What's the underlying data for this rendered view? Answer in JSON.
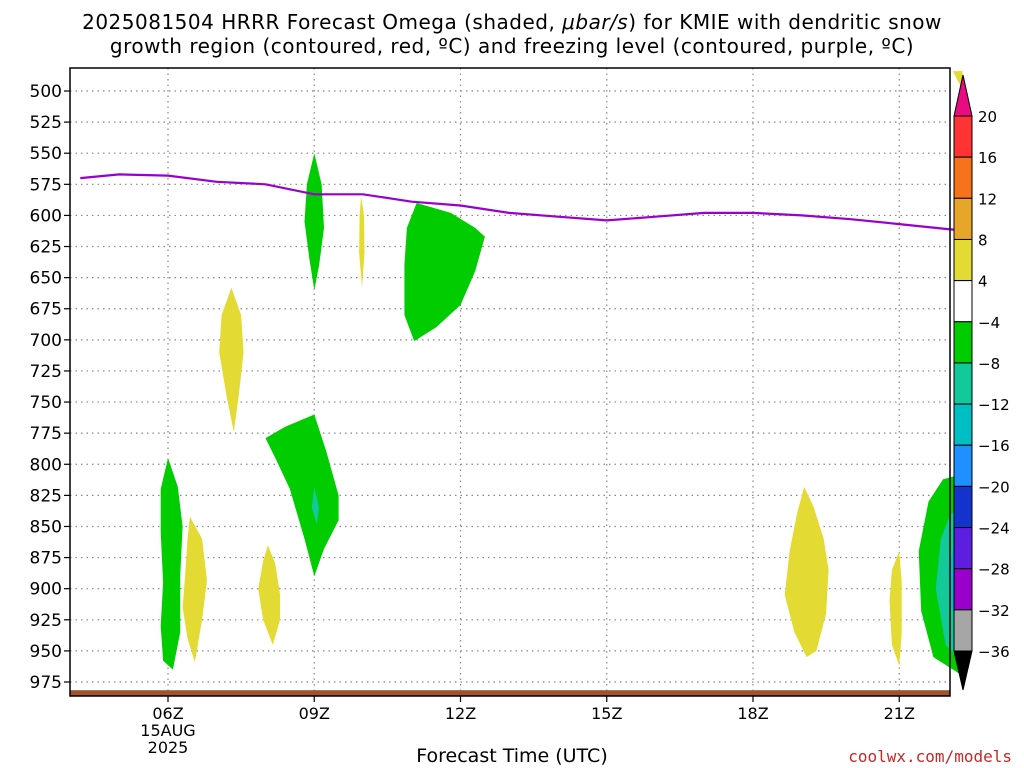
{
  "title": {
    "line1_prefix": "2025081504 HRRR Forecast Omega (shaded, ",
    "line1_unit": "μbar/s",
    "line1_suffix": ") for KMIE with dendritic snow",
    "line2": "growth region (contoured, red, ºC) and freezing level (contoured, purple, ºC)"
  },
  "xlabel": "Forecast Time (UTC)",
  "watermark": "coolwx.com/models",
  "chart_data": {
    "type": "time-height",
    "title": "2025081504 HRRR Forecast Omega (shaded, μbar/s) for KMIE with dendritic snow growth region (contoured, red, ºC) and freezing level (contoured, purple, ºC)",
    "xlabel": "Forecast Time (UTC)",
    "ylabel": "",
    "x_range": [
      4.2,
      22.3
    ],
    "y_range": [
      980,
      487
    ],
    "y_scale": "inverted pressure (hPa)",
    "y_ticks": [
      500,
      525,
      550,
      575,
      600,
      625,
      650,
      675,
      700,
      725,
      750,
      775,
      800,
      825,
      850,
      875,
      900,
      925,
      950,
      975
    ],
    "x_ticks": [
      {
        "x": 6,
        "label": "06Z",
        "sub1": "15AUG",
        "sub2": "2025"
      },
      {
        "x": 9,
        "label": "09Z"
      },
      {
        "x": 12,
        "label": "12Z"
      },
      {
        "x": 15,
        "label": "15Z"
      },
      {
        "x": 18,
        "label": "18Z"
      },
      {
        "x": 21,
        "label": "21Z"
      }
    ],
    "grid": true,
    "freezing_level": {
      "color": "#9900cc",
      "points": [
        [
          4.2,
          570
        ],
        [
          5.0,
          567
        ],
        [
          6.0,
          568
        ],
        [
          7.0,
          573
        ],
        [
          8.0,
          575
        ],
        [
          9.0,
          583
        ],
        [
          10.0,
          583
        ],
        [
          11.0,
          589
        ],
        [
          12.0,
          592
        ],
        [
          13.0,
          598
        ],
        [
          14.0,
          601
        ],
        [
          15.0,
          604
        ],
        [
          16.0,
          601
        ],
        [
          17.0,
          598
        ],
        [
          18.0,
          598
        ],
        [
          19.0,
          600
        ],
        [
          20.0,
          603
        ],
        [
          21.0,
          607
        ],
        [
          22.0,
          611
        ],
        [
          22.3,
          612
        ]
      ]
    },
    "omega_regions": [
      {
        "level": "4 to 8",
        "color": "#e3db34",
        "points": [
          [
            6.45,
            842
          ],
          [
            6.7,
            860
          ],
          [
            6.8,
            893
          ],
          [
            6.7,
            925
          ],
          [
            6.6,
            948
          ],
          [
            6.55,
            959
          ],
          [
            6.4,
            940
          ],
          [
            6.3,
            915
          ],
          [
            6.35,
            890
          ],
          [
            6.4,
            860
          ]
        ]
      },
      {
        "level": "4 to 8",
        "color": "#e3db34",
        "points": [
          [
            7.3,
            658
          ],
          [
            7.5,
            680
          ],
          [
            7.55,
            710
          ],
          [
            7.45,
            745
          ],
          [
            7.35,
            774
          ],
          [
            7.2,
            745
          ],
          [
            7.05,
            710
          ],
          [
            7.1,
            680
          ]
        ]
      },
      {
        "level": "4 to 8",
        "color": "#e3db34",
        "points": [
          [
            8.05,
            865
          ],
          [
            8.2,
            880
          ],
          [
            8.3,
            905
          ],
          [
            8.3,
            925
          ],
          [
            8.15,
            945
          ],
          [
            7.95,
            925
          ],
          [
            7.85,
            900
          ],
          [
            7.95,
            878
          ]
        ]
      },
      {
        "level": "4 to 8",
        "color": "#e3db34",
        "points": [
          [
            9.96,
            585
          ],
          [
            10.02,
            600
          ],
          [
            10.03,
            630
          ],
          [
            9.98,
            658
          ],
          [
            9.92,
            630
          ],
          [
            9.93,
            600
          ]
        ]
      },
      {
        "level": "4 to 8",
        "color": "#e3db34",
        "points": [
          [
            19.05,
            818
          ],
          [
            19.25,
            835
          ],
          [
            19.45,
            860
          ],
          [
            19.55,
            885
          ],
          [
            19.5,
            920
          ],
          [
            19.3,
            950
          ],
          [
            19.1,
            955
          ],
          [
            18.85,
            935
          ],
          [
            18.65,
            905
          ],
          [
            18.75,
            870
          ],
          [
            18.9,
            840
          ]
        ]
      },
      {
        "level": "4 to 8",
        "color": "#e3db34",
        "points": [
          [
            21.0,
            870
          ],
          [
            21.05,
            895
          ],
          [
            21.05,
            935
          ],
          [
            21.0,
            962
          ],
          [
            20.85,
            945
          ],
          [
            20.8,
            910
          ],
          [
            20.85,
            885
          ]
        ]
      },
      {
        "level": "4 to 8",
        "color": "#e3db34",
        "points": [
          [
            22.1,
            484
          ],
          [
            22.3,
            484
          ],
          [
            22.3,
            498
          ],
          [
            22.2,
            492
          ]
        ]
      },
      {
        "level": "-4 to -8",
        "color": "#00cc00",
        "points": [
          [
            9.0,
            550
          ],
          [
            9.15,
            575
          ],
          [
            9.2,
            610
          ],
          [
            9.1,
            640
          ],
          [
            9.0,
            660
          ],
          [
            8.9,
            635
          ],
          [
            8.8,
            605
          ],
          [
            8.85,
            575
          ]
        ]
      },
      {
        "level": "-4 to -8",
        "color": "#00cc00",
        "points": [
          [
            11.1,
            590
          ],
          [
            11.8,
            598
          ],
          [
            12.3,
            610
          ],
          [
            12.5,
            617
          ],
          [
            12.3,
            645
          ],
          [
            12.0,
            672
          ],
          [
            11.5,
            690
          ],
          [
            11.05,
            701
          ],
          [
            10.85,
            680
          ],
          [
            10.85,
            640
          ],
          [
            10.9,
            610
          ]
        ]
      },
      {
        "level": "-4 to -8",
        "color": "#00cc00",
        "points": [
          [
            6.0,
            795
          ],
          [
            6.2,
            818
          ],
          [
            6.3,
            850
          ],
          [
            6.25,
            890
          ],
          [
            6.25,
            935
          ],
          [
            6.1,
            965
          ],
          [
            5.9,
            958
          ],
          [
            5.85,
            930
          ],
          [
            5.9,
            895
          ],
          [
            5.85,
            855
          ],
          [
            5.85,
            820
          ]
        ]
      },
      {
        "level": "-4 to -8",
        "color": "#00cc00",
        "points": [
          [
            8.0,
            779
          ],
          [
            8.4,
            770
          ],
          [
            9.0,
            760
          ],
          [
            9.25,
            790
          ],
          [
            9.5,
            825
          ],
          [
            9.5,
            845
          ],
          [
            9.2,
            868
          ],
          [
            9.0,
            890
          ],
          [
            8.8,
            860
          ],
          [
            8.5,
            820
          ],
          [
            8.2,
            795
          ]
        ]
      },
      {
        "level": "-4 to -8",
        "color": "#00cc00",
        "points": [
          [
            22.3,
            808
          ],
          [
            22.3,
            970
          ],
          [
            21.7,
            955
          ],
          [
            21.45,
            918
          ],
          [
            21.4,
            870
          ],
          [
            21.6,
            830
          ],
          [
            21.9,
            812
          ]
        ]
      },
      {
        "level": "-8 to -12",
        "color": "#12c99a",
        "points": [
          [
            22.3,
            835
          ],
          [
            22.3,
            960
          ],
          [
            21.95,
            945
          ],
          [
            21.75,
            900
          ],
          [
            21.85,
            860
          ],
          [
            22.05,
            840
          ]
        ]
      },
      {
        "level": "-8 to -12",
        "color": "#12c99a",
        "points": [
          [
            9.0,
            818
          ],
          [
            9.1,
            835
          ],
          [
            9.05,
            848
          ],
          [
            8.95,
            835
          ]
        ]
      },
      {
        "level": "-12 to -16",
        "color": "#00bfc4",
        "points": [
          [
            22.3,
            860
          ],
          [
            22.3,
            930
          ],
          [
            22.05,
            915
          ],
          [
            22.0,
            885
          ],
          [
            22.1,
            868
          ]
        ]
      }
    ],
    "ground": {
      "color": "#a0522d",
      "pressure": 984
    },
    "colorbar": {
      "labels": [
        "20",
        "16",
        "12",
        "8",
        "4",
        "−4",
        "−8",
        "−12",
        "−16",
        "−20",
        "−24",
        "−28",
        "−32",
        "−36"
      ],
      "segments": [
        "#e80c80",
        "#ff3333",
        "#f6731c",
        "#e6a62a",
        "#e3db34",
        "#ffffff",
        "#00cc00",
        "#12c99a",
        "#00bfc4",
        "#1e90ff",
        "#1433cc",
        "#5e1ee0",
        "#9900cc",
        "#a6a6a6",
        "#000000"
      ]
    }
  }
}
